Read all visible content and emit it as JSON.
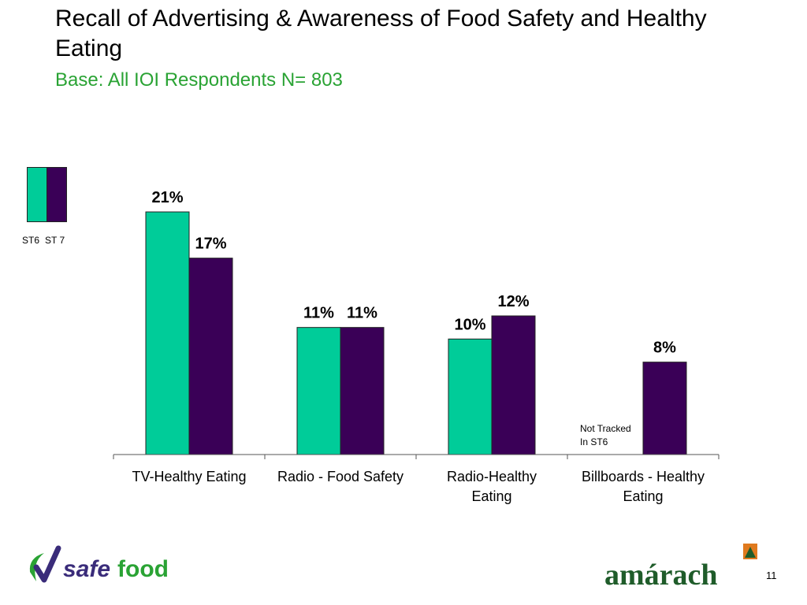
{
  "title": "Recall of Advertising & Awareness of Food Safety and Healthy Eating",
  "subtitle": "Base: All IOI Respondents N= 803",
  "page_number": "11",
  "logos": {
    "left": "safefood",
    "right": "amárach"
  },
  "chart_data": {
    "type": "bar",
    "categories": [
      "TV-Healthy Eating",
      "Radio - Food Safety",
      "Radio-Healthy Eating",
      "Billboards - Healthy Eating"
    ],
    "category_lines": [
      [
        "TV-Healthy Eating"
      ],
      [
        "Radio - Food Safety"
      ],
      [
        "Radio-Healthy",
        "Eating"
      ],
      [
        "Billboards - Healthy",
        "Eating"
      ]
    ],
    "series": [
      {
        "name": "ST6",
        "color": "#00cc99",
        "values": [
          21,
          11,
          10,
          null
        ],
        "labels": [
          "21%",
          "11%",
          "10%",
          ""
        ]
      },
      {
        "name": "ST 7",
        "color": "#3a0057",
        "values": [
          17,
          11,
          12,
          8
        ],
        "labels": [
          "17%",
          "11%",
          "12%",
          "8%"
        ]
      }
    ],
    "ylim": [
      0,
      21
    ],
    "grid": false,
    "legend_position": "left",
    "annotations": [
      {
        "category": "Billboards - Healthy Eating",
        "lines": [
          "Not Tracked",
          "In ST6"
        ]
      }
    ]
  }
}
